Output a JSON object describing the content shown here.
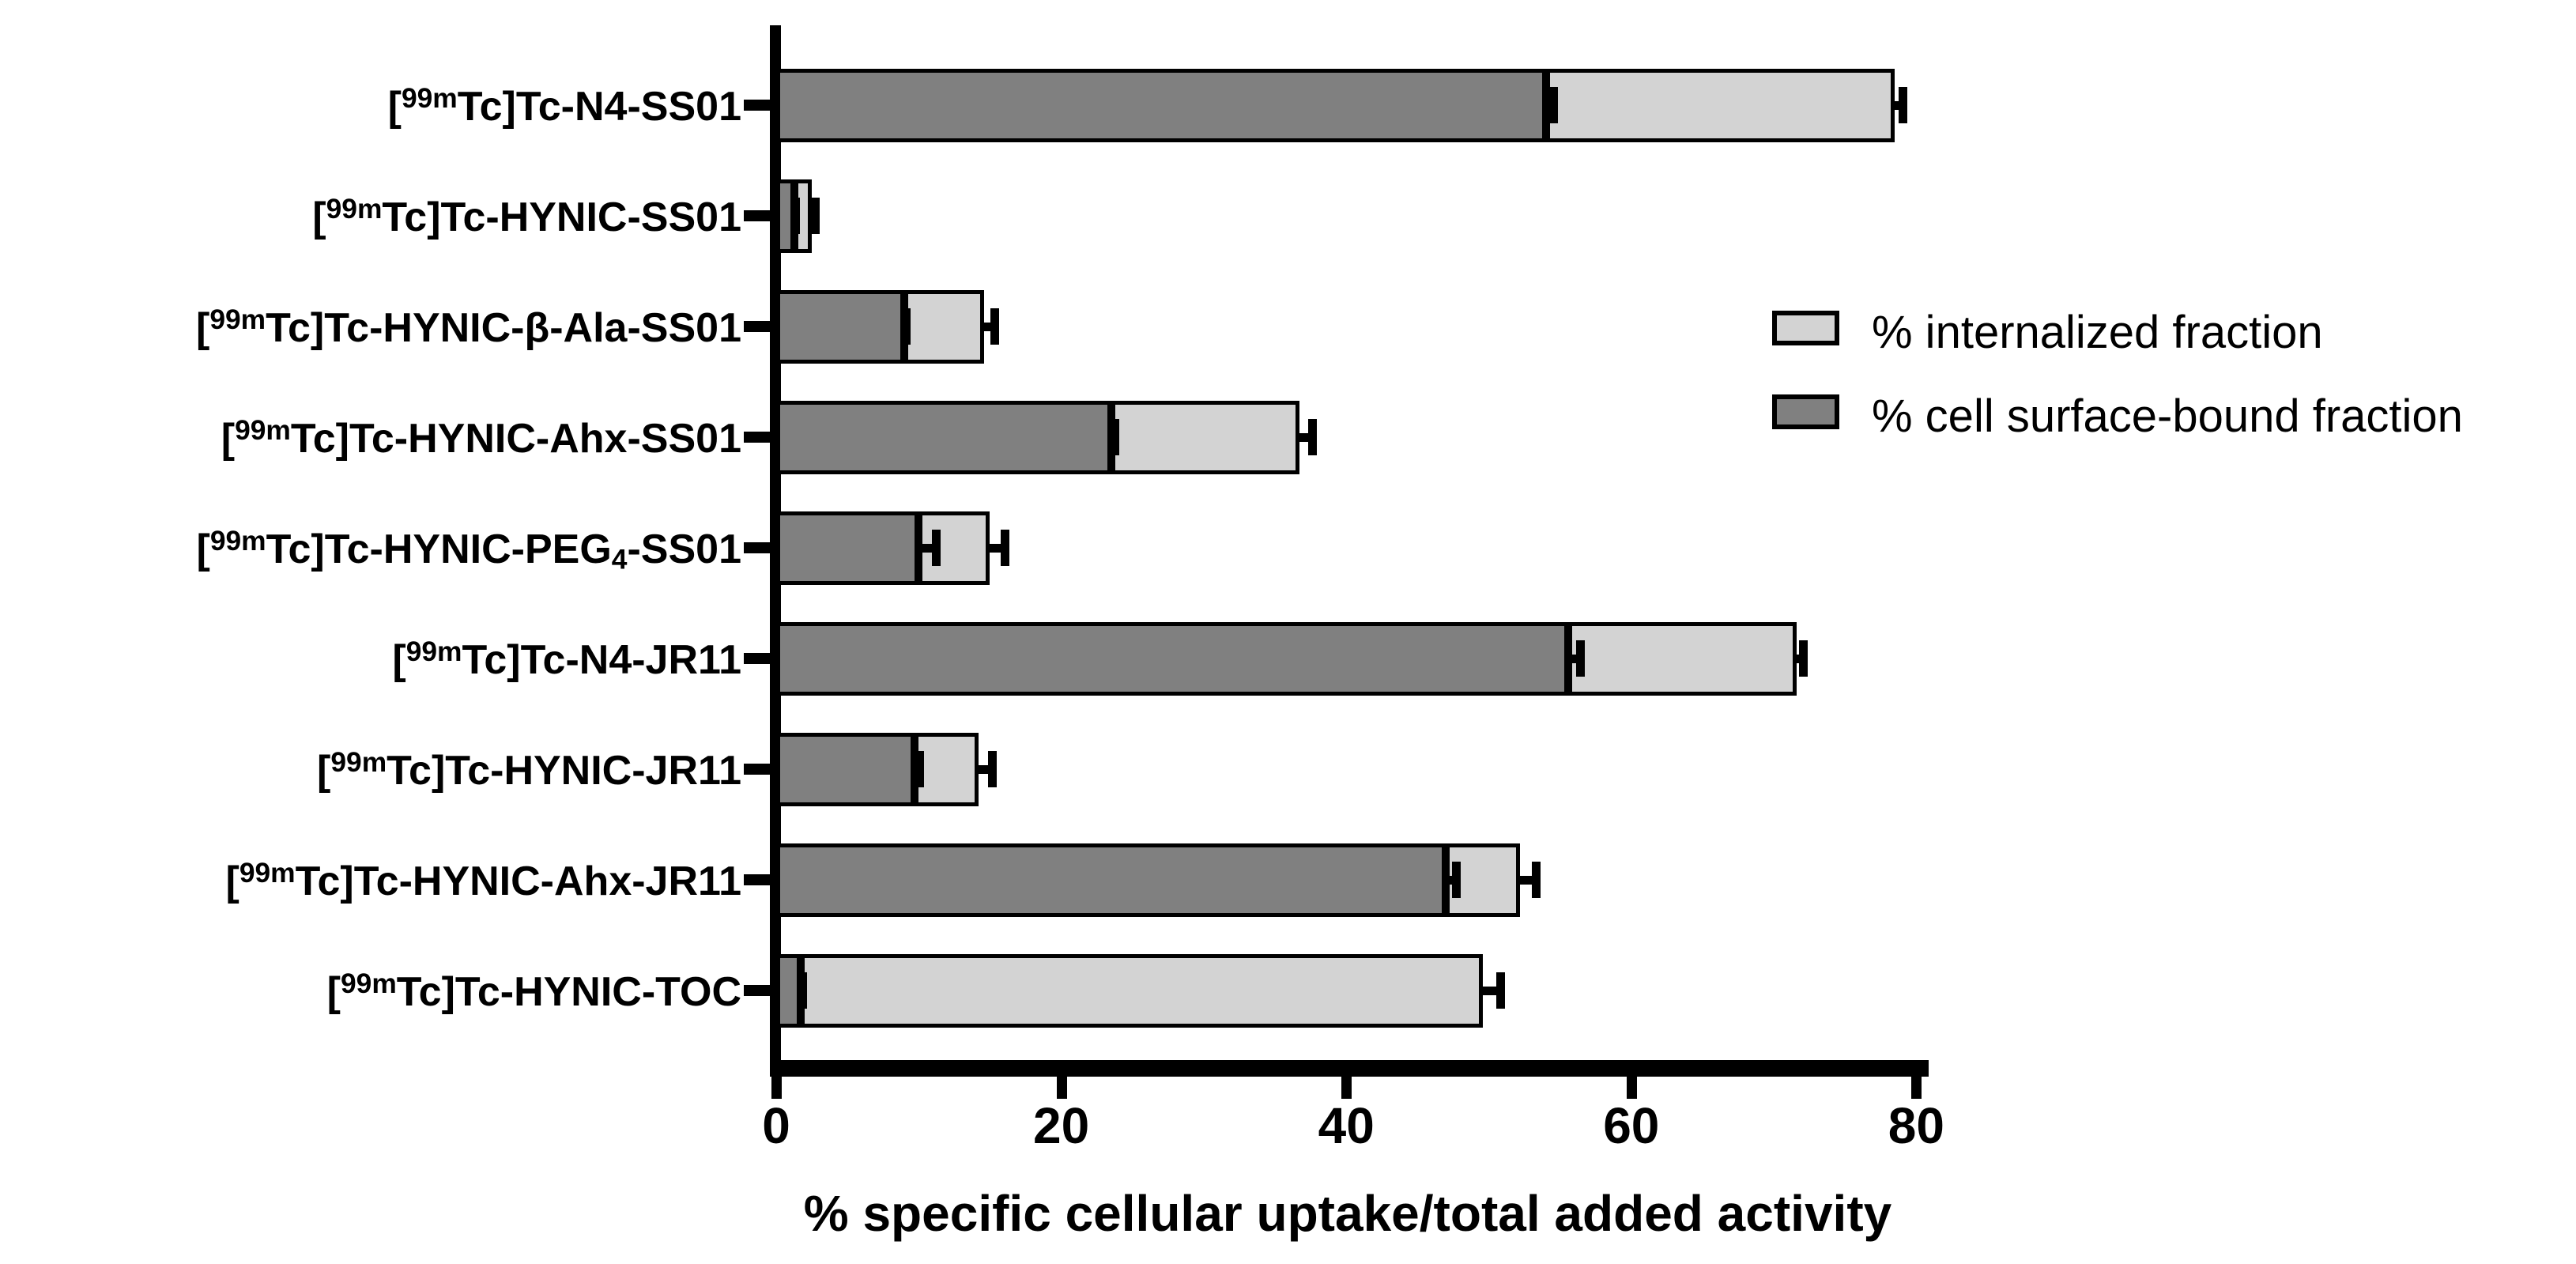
{
  "figure": {
    "background": "#ffffff"
  },
  "colors": {
    "internalized": "#d3d3d3",
    "surface_bound": "#808080",
    "axis": "#000000"
  },
  "legend": {
    "items": [
      {
        "label": "% internalized fraction",
        "color": "#d3d3d3"
      },
      {
        "label": "% cell surface-bound fraction",
        "color": "#808080"
      }
    ]
  },
  "chart_data": {
    "type": "bar",
    "orientation": "horizontal",
    "stacked": true,
    "grid": false,
    "legend_position": "right",
    "title": "",
    "xlabel": "% specific cellular uptake/total added activity",
    "ylabel": "",
    "xlim": [
      0,
      80
    ],
    "x_ticks": [
      0,
      20,
      40,
      60,
      80
    ],
    "categories": [
      "[^{99m}Tc]Tc-N4-SS01",
      "[^{99m}Tc]Tc-HYNIC-SS01",
      "[^{99m}Tc]Tc-HYNIC-β-Ala-SS01",
      "[^{99m}Tc]Tc-HYNIC-Ahx-SS01",
      "[^{99m}Tc]Tc-HYNIC-PEG_{4}-SS01",
      "[^{99m}Tc]Tc-N4-JR11",
      "[^{99m}Tc]Tc-HYNIC-JR11",
      "[^{99m}Tc]Tc-HYNIC-Ahx-JR11",
      "[^{99m}Tc]Tc-HYNIC-TOC"
    ],
    "series": [
      {
        "name": "% cell surface-bound fraction",
        "color": "#808080",
        "values": [
          54.0,
          1.3,
          9.0,
          23.5,
          10.0,
          55.6,
          9.7,
          47.0,
          1.7
        ],
        "errors": [
          0.8,
          0.3,
          0.4,
          0.5,
          1.5,
          1.1,
          0.6,
          1.0,
          0.4
        ]
      },
      {
        "name": "% internalized fraction",
        "color": "#d3d3d3",
        "values": [
          24.5,
          1.2,
          5.6,
          13.2,
          5.0,
          16.0,
          4.5,
          5.2,
          47.9
        ],
        "errors": [
          0.8,
          0.5,
          1.0,
          1.2,
          1.3,
          0.7,
          1.2,
          1.4,
          1.5
        ]
      }
    ],
    "stacked_totals": [
      78.5,
      2.5,
      14.6,
      36.7,
      15.0,
      71.6,
      14.2,
      52.2,
      49.6
    ]
  }
}
